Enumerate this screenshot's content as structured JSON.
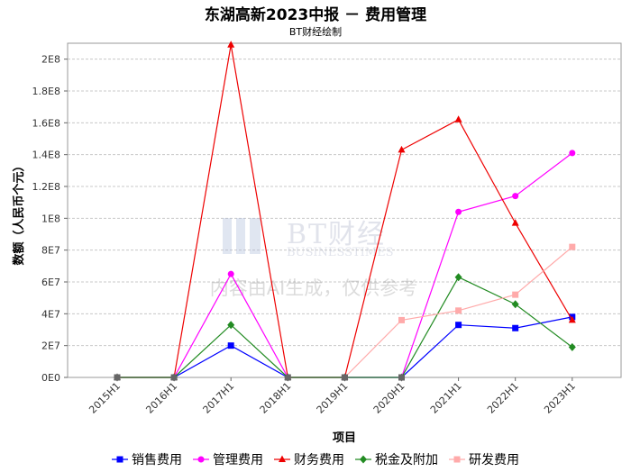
{
  "chart_data": {
    "type": "line",
    "title": "东湖高新2023中报 － 费用管理",
    "subtitle": "BT财经绘制",
    "xlabel": "项目",
    "ylabel": "数额（人民币个元）",
    "categories": [
      "2015H1",
      "2016H1",
      "2017H1",
      "2018H1",
      "2019H1",
      "2020H1",
      "2021H1",
      "2022H1",
      "2023H1"
    ],
    "ylim": [
      0,
      210000000
    ],
    "yticks": [
      {
        "value": 0,
        "label": "0E0"
      },
      {
        "value": 20000000,
        "label": "2E7"
      },
      {
        "value": 40000000,
        "label": "4E7"
      },
      {
        "value": 60000000,
        "label": "6E7"
      },
      {
        "value": 80000000,
        "label": "8E7"
      },
      {
        "value": 100000000,
        "label": "1E8"
      },
      {
        "value": 120000000,
        "label": "1.2E8"
      },
      {
        "value": 140000000,
        "label": "1.4E8"
      },
      {
        "value": 160000000,
        "label": "1.6E8"
      },
      {
        "value": 180000000,
        "label": "1.8E8"
      },
      {
        "value": 200000000,
        "label": "2E8"
      }
    ],
    "grid": true,
    "legend_position": "bottom",
    "series": [
      {
        "name": "销售费用",
        "color": "#0000ff",
        "marker": "square",
        "values": [
          0,
          0,
          20000000,
          0,
          0,
          0,
          33000000,
          31000000,
          38000000
        ]
      },
      {
        "name": "管理费用",
        "color": "#ff00ff",
        "marker": "circle",
        "values": [
          0,
          0,
          65000000,
          0,
          0,
          0,
          104000000,
          114000000,
          141000000
        ]
      },
      {
        "name": "财务费用",
        "color": "#ee0000",
        "marker": "triangle",
        "values": [
          0,
          0,
          209000000,
          0,
          0,
          143000000,
          162000000,
          97000000,
          36000000
        ]
      },
      {
        "name": "税金及附加",
        "color": "#228b22",
        "marker": "diamond",
        "values": [
          0,
          0,
          33000000,
          0,
          0,
          0,
          63000000,
          46000000,
          19000000
        ]
      },
      {
        "name": "研发费用",
        "color": "#ffaaaa",
        "marker": "square",
        "values": [
          null,
          null,
          null,
          null,
          0,
          36000000,
          42000000,
          52000000,
          82000000
        ]
      }
    ]
  },
  "watermark": {
    "brand_cn": "BT财经",
    "brand_en": "BUSINESSTIMES",
    "notice": "内容由AI生成，仅供参考"
  }
}
